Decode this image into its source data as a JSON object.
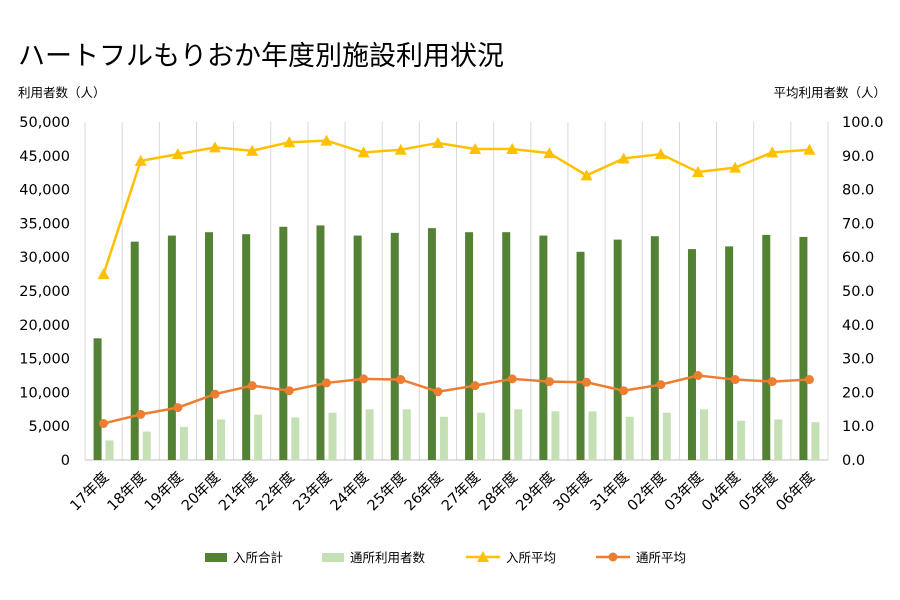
{
  "chart_data": {
    "type": "bar",
    "title": "ハートフルもりおか年度別施設利用状況",
    "ylabel": "利用者数（人）",
    "y2label": "平均利用者数（人）",
    "categories": [
      "17年度",
      "18年度",
      "19年度",
      "20年度",
      "21年度",
      "22年度",
      "23年度",
      "24年度",
      "25年度",
      "26年度",
      "27年度",
      "28年度",
      "29年度",
      "30年度",
      "31年度",
      "02年度",
      "03年度",
      "04年度",
      "05年度",
      "06年度"
    ],
    "ylim": [
      0,
      50000
    ],
    "y2lim": [
      0,
      100
    ],
    "yticks": [
      "0",
      "5,000",
      "10,000",
      "15,000",
      "20,000",
      "25,000",
      "30,000",
      "35,000",
      "40,000",
      "45,000",
      "50,000"
    ],
    "y2ticks": [
      "0.0",
      "10.0",
      "20.0",
      "30.0",
      "40.0",
      "50.0",
      "60.0",
      "70.0",
      "80.0",
      "90.0",
      "100.0"
    ],
    "grid": "vertical",
    "legend_position": "bottom",
    "series": [
      {
        "name": "入所合計",
        "type": "bar",
        "axis": "left",
        "color": "#548235",
        "values": [
          18000,
          32300,
          33200,
          33700,
          33400,
          34500,
          34700,
          33200,
          33600,
          34300,
          33700,
          33700,
          33200,
          30800,
          32600,
          33100,
          31200,
          31600,
          33300,
          33000
        ]
      },
      {
        "name": "通所利用者数",
        "type": "bar",
        "axis": "left",
        "color": "#c5e0b4",
        "values": [
          2900,
          4200,
          4900,
          6000,
          6700,
          6300,
          7000,
          7500,
          7500,
          6400,
          7000,
          7500,
          7200,
          7200,
          6400,
          7000,
          7500,
          5800,
          6000,
          5600
        ]
      },
      {
        "name": "入所平均",
        "type": "line",
        "axis": "right",
        "marker": "triangle",
        "color": "#ffc000",
        "values": [
          55.0,
          88.5,
          90.5,
          92.5,
          91.5,
          94.0,
          94.5,
          91.0,
          91.8,
          93.8,
          92.0,
          92.0,
          90.8,
          84.2,
          89.2,
          90.5,
          85.2,
          86.5,
          91.0,
          91.8
        ]
      },
      {
        "name": "通所平均",
        "type": "line",
        "axis": "right",
        "marker": "circle",
        "color": "#ed7d31",
        "values": [
          10.8,
          13.5,
          15.5,
          19.5,
          22.0,
          20.5,
          22.8,
          24.0,
          23.8,
          20.2,
          22.0,
          24.0,
          23.2,
          23.0,
          20.5,
          22.3,
          25.0,
          23.8,
          23.2,
          23.8
        ]
      }
    ]
  }
}
